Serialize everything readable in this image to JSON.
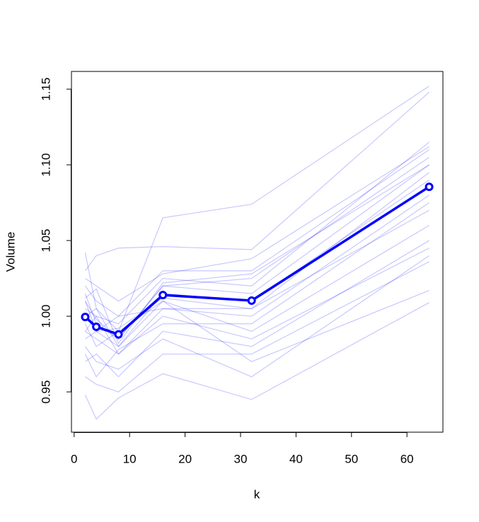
{
  "chart_data": {
    "type": "line",
    "x_label": "k",
    "y_label": "Volume",
    "x": [
      2,
      4,
      8,
      16,
      32,
      64
    ],
    "xlim": [
      -0.48,
      66.48
    ],
    "ylim": [
      0.9234,
      1.1617
    ],
    "xticks": [
      0,
      10,
      20,
      30,
      40,
      50,
      60
    ],
    "yticks": [
      0.95,
      {
        "value": 1,
        "label": "1.00"
      },
      1.05,
      {
        "value": 1.1,
        "label": "1.10"
      },
      1.15
    ],
    "replicate_color": "rgba(0,0,255,0.22)",
    "mean_color": "#0000ff",
    "replicates": [
      [
        1.042,
        1.005,
        0.99,
        1.065,
        1.074,
        1.152
      ],
      [
        0.948,
        0.932,
        0.946,
        0.962,
        0.945,
        1.009
      ],
      [
        1.01,
        0.998,
        0.985,
        1.02,
        1.015,
        1.1
      ],
      [
        0.99,
        0.985,
        0.975,
        1.005,
        1.0,
        1.08
      ],
      [
        1.02,
        1.01,
        1.0,
        1.03,
        1.03,
        1.11
      ],
      [
        0.97,
        0.975,
        0.96,
        0.99,
        0.98,
        1.05
      ],
      [
        1.0,
        0.99,
        0.98,
        1.015,
        1.01,
        1.09
      ],
      [
        1.03,
        1.04,
        1.045,
        1.046,
        1.044,
        1.148
      ],
      [
        0.98,
        0.97,
        0.965,
        0.985,
        0.96,
        1.04
      ],
      [
        1.005,
        1.0,
        0.995,
        1.025,
        1.02,
        1.115
      ],
      [
        0.995,
        0.98,
        0.99,
        1.01,
        0.97,
        1.017
      ],
      [
        1.015,
        0.995,
        0.985,
        1.02,
        1.025,
        1.105
      ],
      [
        0.96,
        0.955,
        0.95,
        0.975,
        0.975,
        1.036
      ],
      [
        0.985,
        0.99,
        1.0,
        1.005,
        1.005,
        1.07
      ],
      [
        1.025,
        1.02,
        1.01,
        1.028,
        1.038,
        1.112
      ],
      [
        1.0,
        1.005,
        0.98,
        1.01,
        0.99,
        1.06
      ],
      [
        0.975,
        0.96,
        0.978,
        0.995,
        0.995,
        1.075
      ],
      [
        1.01,
        0.99,
        0.992,
        1.012,
        1.005,
        1.095
      ],
      [
        0.99,
        1.0,
        0.975,
        1.0,
        0.985,
        1.045
      ],
      [
        1.012,
        1.018,
        0.982,
        1.022,
        1.028,
        1.1
      ]
    ],
    "mean": [
      0.9995,
      0.993,
      0.988,
      1.014,
      1.0103,
      1.0855
    ]
  }
}
